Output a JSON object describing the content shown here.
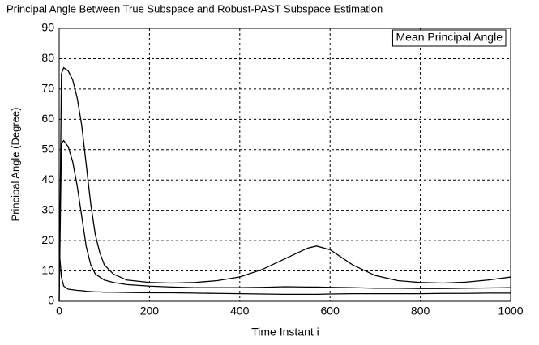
{
  "chart_data": {
    "type": "line",
    "title": "Principal Angle Between True Subspace and Robust-PAST Subspace Estimation",
    "xlabel": "Time Instant i",
    "ylabel": "Principal Angle (Degree)",
    "x": [
      0,
      5,
      10,
      20,
      30,
      40,
      50,
      60,
      70,
      80,
      90,
      100,
      120,
      150,
      200,
      250,
      300,
      350,
      400,
      450,
      500,
      550,
      570,
      600,
      650,
      700,
      750,
      800,
      850,
      900,
      950,
      1000
    ],
    "series": [
      {
        "name": "Mean Principal Angle",
        "color": "#000000",
        "values": [
          0,
          75,
          77,
          76,
          73,
          67,
          58,
          45,
          32,
          22,
          16,
          12,
          9,
          7,
          6.2,
          6,
          6.2,
          6.8,
          8,
          10.5,
          14,
          17.5,
          18.2,
          17,
          12,
          8.5,
          6.8,
          6.2,
          6,
          6.3,
          7,
          8
        ]
      },
      {
        "color": "#000000",
        "values": [
          0,
          52,
          53,
          51,
          46,
          38,
          28,
          18,
          12,
          9,
          8,
          7,
          6.2,
          5.5,
          5,
          4.7,
          4.5,
          4.5,
          4.5,
          4.6,
          4.8,
          4.7,
          4.7,
          4.6,
          4.5,
          4.3,
          4.3,
          4.2,
          4.2,
          4.3,
          4.4,
          4.5
        ]
      },
      {
        "color": "#000000",
        "values": [
          17,
          8,
          5,
          4,
          3.8,
          3.6,
          3.5,
          3.3,
          3.2,
          3.1,
          3.1,
          3,
          3,
          2.9,
          2.8,
          2.8,
          2.7,
          2.6,
          2.5,
          2.4,
          2.3,
          2.3,
          2.3,
          2.4,
          2.5,
          2.5,
          2.5,
          2.5,
          2.6,
          2.6,
          2.7,
          2.7
        ]
      }
    ],
    "xlim": [
      0,
      1000
    ],
    "xticks": [
      0,
      200,
      400,
      600,
      800,
      1000
    ],
    "ylim": [
      0,
      90
    ],
    "yticks": [
      0,
      10,
      20,
      30,
      40,
      50,
      60,
      70,
      80,
      90
    ],
    "grid": true,
    "legend": "top-right"
  }
}
